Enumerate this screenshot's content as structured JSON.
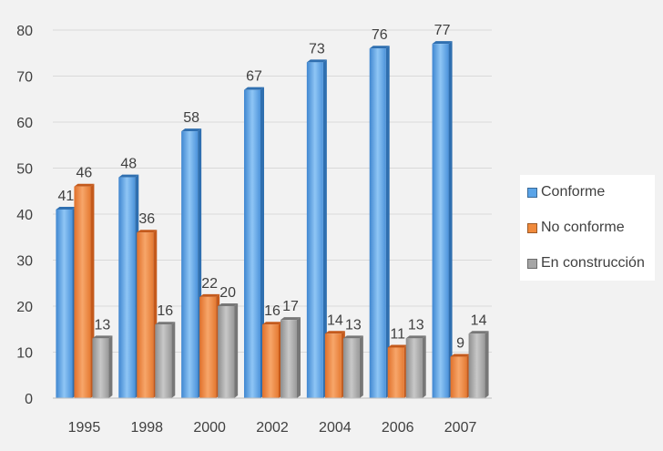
{
  "chart_data": {
    "type": "bar",
    "title": "",
    "xlabel": "",
    "ylabel": "",
    "categories": [
      "1995",
      "1998",
      "2000",
      "2002",
      "2004",
      "2006",
      "2007"
    ],
    "ylim": [
      0,
      80
    ],
    "yticks": [
      "0",
      "10",
      "20",
      "30",
      "40",
      "50",
      "60",
      "70",
      "80"
    ],
    "grid": true,
    "legend": "right",
    "series": [
      {
        "name": "Conforme",
        "color": "#5aa4e8",
        "values": [
          41,
          48,
          58,
          67,
          73,
          76,
          77
        ]
      },
      {
        "name": "No conforme",
        "color": "#f08a3c",
        "values": [
          46,
          36,
          22,
          16,
          14,
          11,
          9
        ]
      },
      {
        "name": "En construcción",
        "color": "#a5a5a5",
        "values": [
          13,
          16,
          20,
          17,
          13,
          13,
          14
        ]
      }
    ]
  }
}
